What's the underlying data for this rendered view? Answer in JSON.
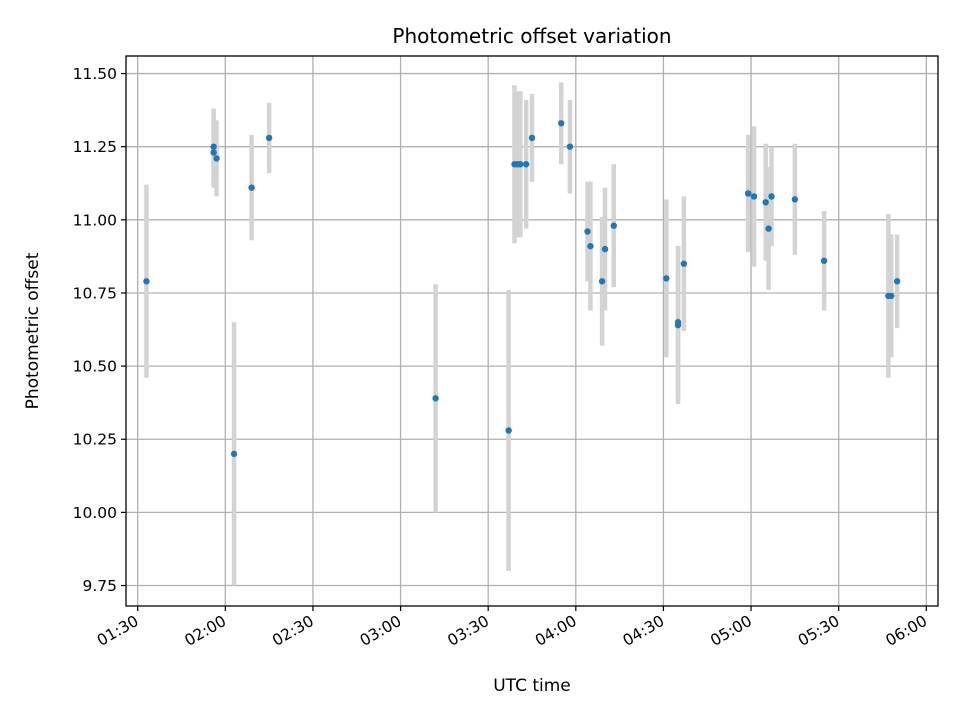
{
  "chart_data": {
    "type": "scatter",
    "title": "Photometric offset variation",
    "xlabel": "UTC time",
    "ylabel": "Photometric offset",
    "x_ticks": [
      "01:30",
      "02:00",
      "02:30",
      "03:00",
      "03:30",
      "04:00",
      "04:30",
      "05:00",
      "05:30",
      "06:00"
    ],
    "y_ticks": [
      "9.75",
      "10.00",
      "10.25",
      "10.50",
      "10.75",
      "11.00",
      "11.25",
      "11.50"
    ],
    "xlim": [
      "01:26",
      "06:04"
    ],
    "ylim": [
      9.68,
      11.56
    ],
    "grid": true,
    "colors": {
      "point": "#1f77b4",
      "errorbar": "#d3d3d3",
      "grid": "#b0b0b0"
    },
    "points": [
      {
        "t": "01:33",
        "y": 10.79,
        "err": 0.33
      },
      {
        "t": "01:56",
        "y": 11.25,
        "err": 0.13
      },
      {
        "t": "01:56",
        "y": 11.23,
        "err": 0.12
      },
      {
        "t": "01:57",
        "y": 11.21,
        "err": 0.13
      },
      {
        "t": "02:03",
        "y": 10.2,
        "err": 0.45
      },
      {
        "t": "02:09",
        "y": 11.11,
        "err": 0.18
      },
      {
        "t": "02:15",
        "y": 11.28,
        "err": 0.12
      },
      {
        "t": "03:12",
        "y": 10.39,
        "err": 0.39
      },
      {
        "t": "03:37",
        "y": 10.28,
        "err": 0.48
      },
      {
        "t": "03:39",
        "y": 11.19,
        "err": 0.27
      },
      {
        "t": "03:40",
        "y": 11.19,
        "err": 0.25
      },
      {
        "t": "03:41",
        "y": 11.19,
        "err": 0.25
      },
      {
        "t": "03:43",
        "y": 11.19,
        "err": 0.22
      },
      {
        "t": "03:45",
        "y": 11.28,
        "err": 0.15
      },
      {
        "t": "03:55",
        "y": 11.33,
        "err": 0.14
      },
      {
        "t": "03:58",
        "y": 11.25,
        "err": 0.16
      },
      {
        "t": "04:04",
        "y": 10.96,
        "err": 0.17
      },
      {
        "t": "04:05",
        "y": 10.91,
        "err": 0.22
      },
      {
        "t": "04:09",
        "y": 10.79,
        "err": 0.22
      },
      {
        "t": "04:10",
        "y": 10.9,
        "err": 0.21
      },
      {
        "t": "04:13",
        "y": 10.98,
        "err": 0.21
      },
      {
        "t": "04:31",
        "y": 10.8,
        "err": 0.27
      },
      {
        "t": "04:35",
        "y": 10.64,
        "err": 0.27
      },
      {
        "t": "04:35",
        "y": 10.65,
        "err": 0.26
      },
      {
        "t": "04:37",
        "y": 10.85,
        "err": 0.23
      },
      {
        "t": "04:59",
        "y": 11.09,
        "err": 0.2
      },
      {
        "t": "04:59",
        "y": 11.09,
        "err": 0.18
      },
      {
        "t": "05:01",
        "y": 11.08,
        "err": 0.24
      },
      {
        "t": "05:05",
        "y": 11.06,
        "err": 0.2
      },
      {
        "t": "05:06",
        "y": 10.97,
        "err": 0.21
      },
      {
        "t": "05:07",
        "y": 11.08,
        "err": 0.17
      },
      {
        "t": "05:15",
        "y": 11.07,
        "err": 0.19
      },
      {
        "t": "05:25",
        "y": 10.86,
        "err": 0.17
      },
      {
        "t": "05:47",
        "y": 10.74,
        "err": 0.28
      },
      {
        "t": "05:48",
        "y": 10.74,
        "err": 0.21
      },
      {
        "t": "05:50",
        "y": 10.79,
        "err": 0.16
      }
    ]
  }
}
